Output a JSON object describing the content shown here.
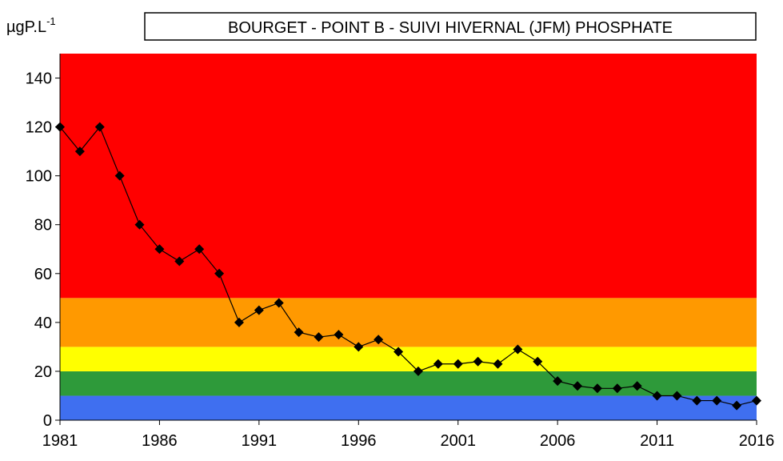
{
  "chart_data": {
    "type": "line",
    "title": "BOURGET  - POINT B -  SUIVI HIVERNAL  (JFM) PHOSPHATE",
    "y_axis_label": {
      "base": "µgP.L",
      "superscript": "-1"
    },
    "x": [
      1981,
      1982,
      1983,
      1984,
      1985,
      1986,
      1987,
      1988,
      1989,
      1990,
      1991,
      1992,
      1993,
      1994,
      1995,
      1996,
      1997,
      1998,
      1999,
      2000,
      2001,
      2002,
      2003,
      2004,
      2005,
      2006,
      2007,
      2008,
      2009,
      2010,
      2011,
      2012,
      2013,
      2014,
      2015,
      2016
    ],
    "values": [
      120,
      110,
      120,
      100,
      80,
      70,
      65,
      70,
      60,
      40,
      45,
      48,
      36,
      34,
      35,
      30,
      33,
      28,
      20,
      23,
      23,
      24,
      23,
      29,
      24,
      16,
      14,
      13,
      13,
      14,
      10,
      10,
      8,
      8,
      6,
      8
    ],
    "color": "#000000",
    "xlim": [
      1981,
      2016
    ],
    "xticks": [
      1981,
      1986,
      1991,
      1996,
      2001,
      2006,
      2011,
      2016
    ],
    "ylim": [
      0,
      150
    ],
    "yticks": [
      0,
      20,
      40,
      60,
      80,
      100,
      120,
      140
    ],
    "bands": [
      {
        "from": 0,
        "to": 10,
        "color": "#3f6ff0"
      },
      {
        "from": 10,
        "to": 20,
        "color": "#2e9a3a"
      },
      {
        "from": 20,
        "to": 30,
        "color": "#ffff00"
      },
      {
        "from": 30,
        "to": 50,
        "color": "#ff9900"
      },
      {
        "from": 50,
        "to": 150,
        "color": "#ff0000"
      }
    ]
  }
}
